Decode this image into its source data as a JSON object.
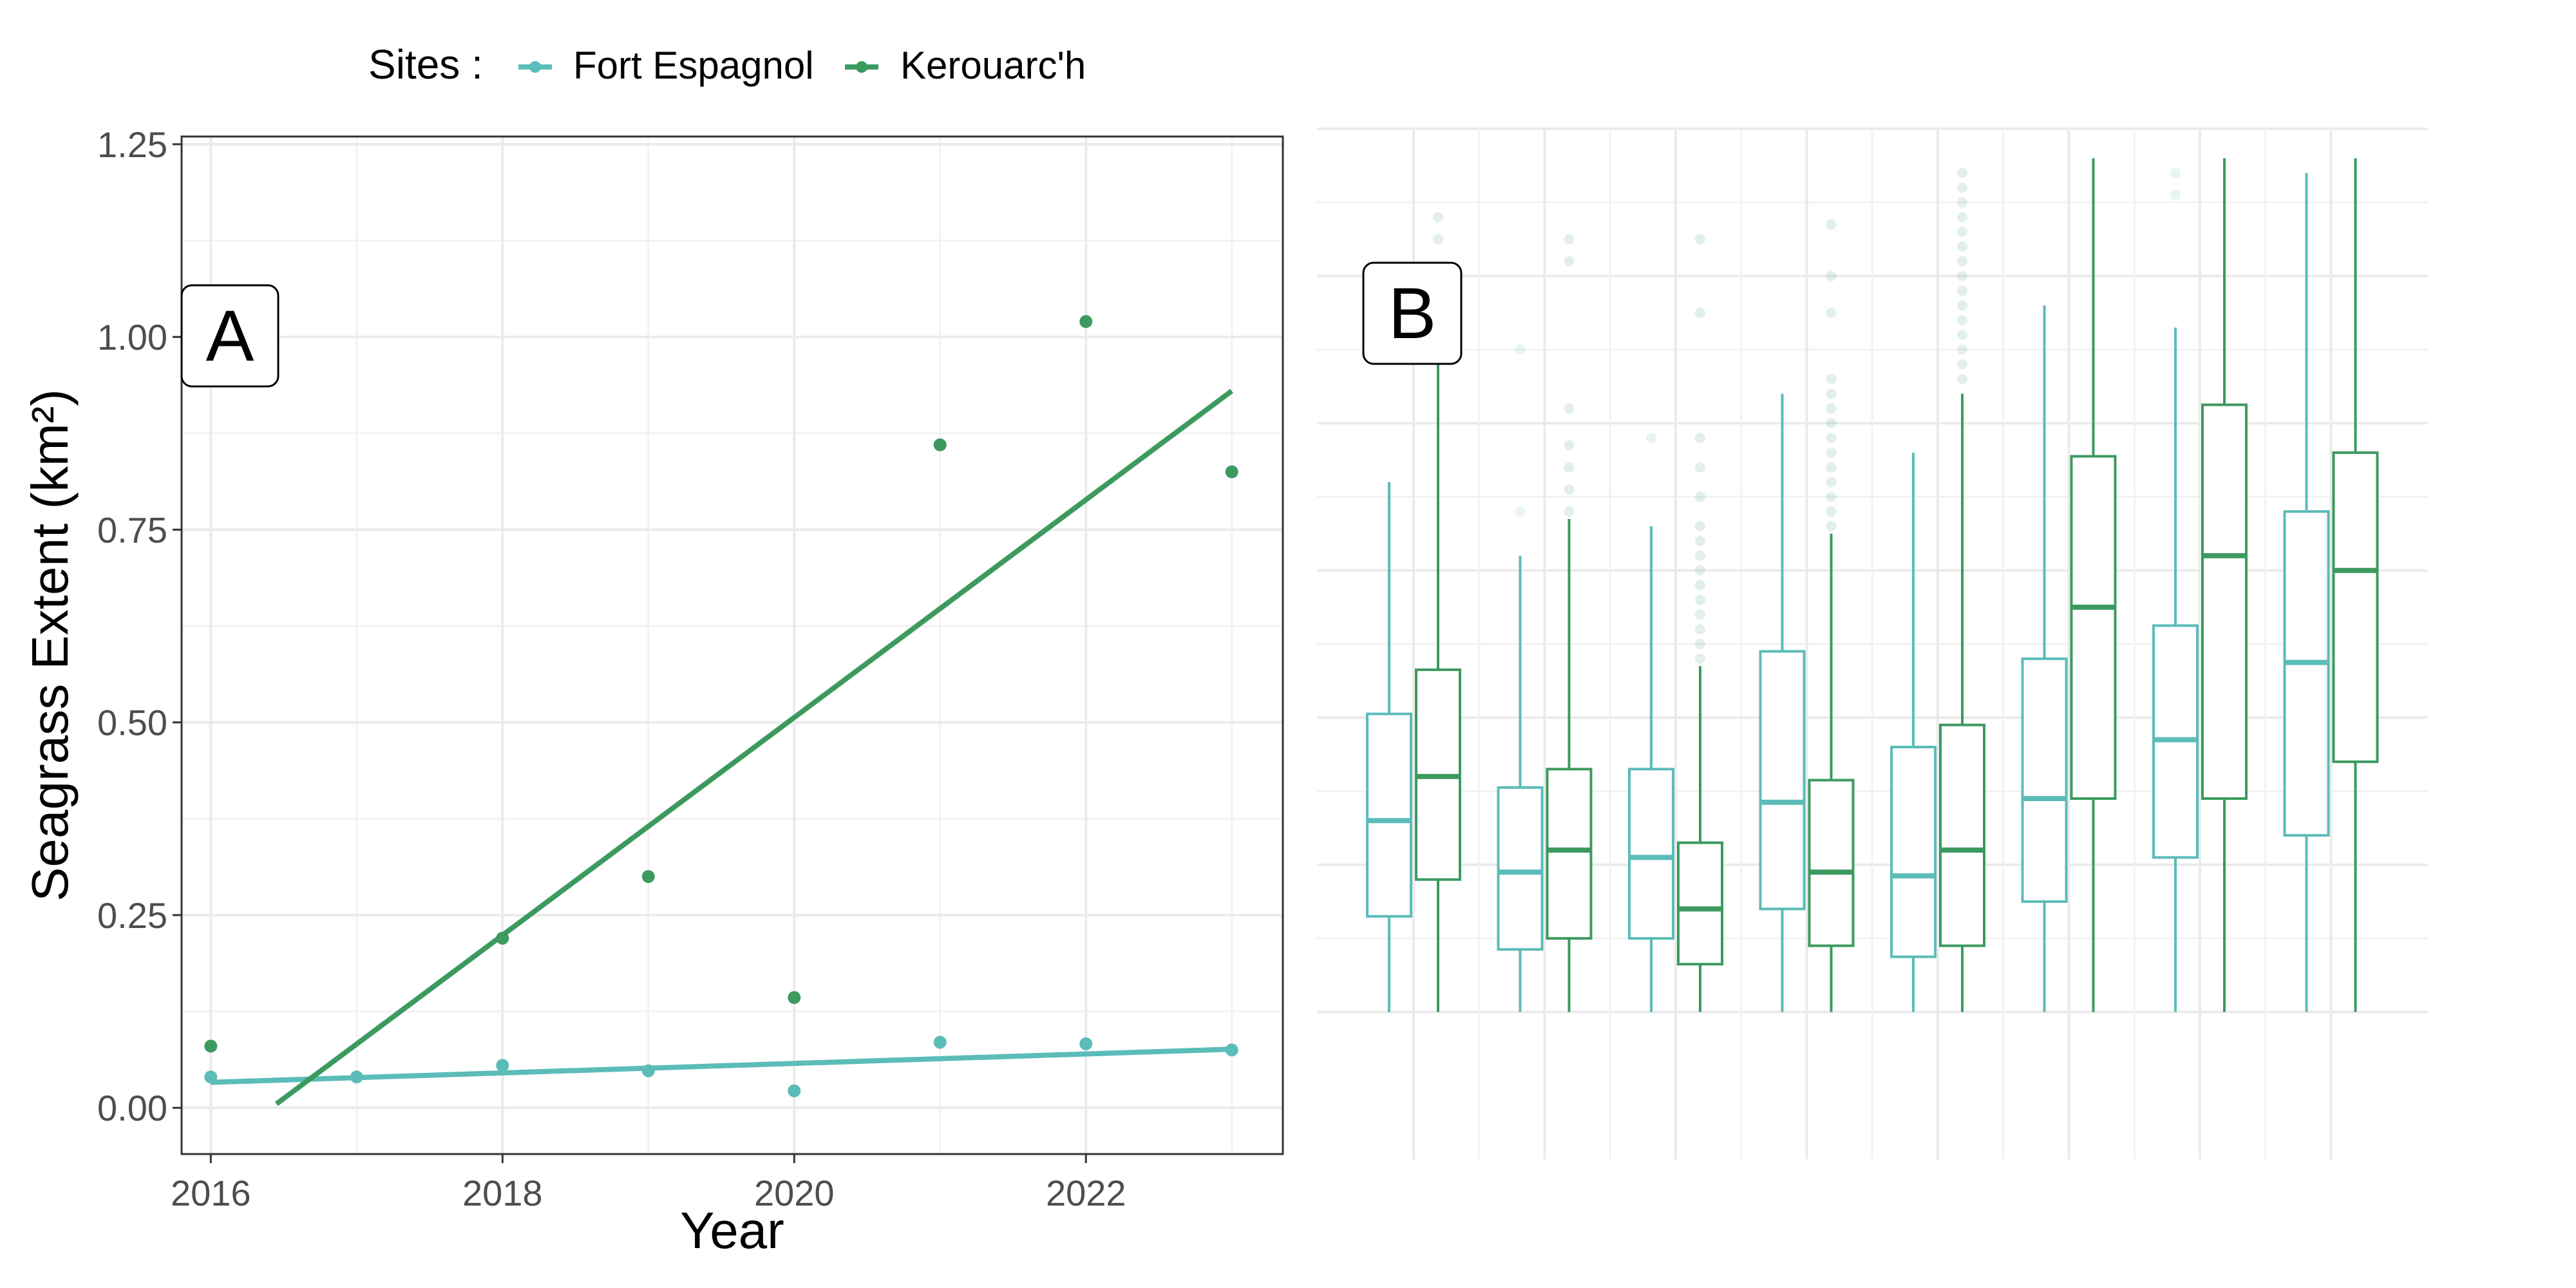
{
  "legend": {
    "title": "Sites :",
    "items": [
      {
        "label": "Fort Espagnol",
        "color": "#5bbcb8"
      },
      {
        "label": "Kerouarc'h",
        "color": "#3c9a5f"
      }
    ]
  },
  "chart_data": [
    {
      "panel": "A",
      "type": "scatter",
      "xlabel": "Year",
      "ylabel": "Seagrass Extent (km²)",
      "xlim": [
        2015.8,
        2023.35
      ],
      "ylim": [
        -0.06,
        1.26
      ],
      "xticks": [
        2016,
        2018,
        2020,
        2022
      ],
      "yticks": [
        "0.00",
        "0.25",
        "0.50",
        "0.75",
        "1.00",
        "1.25"
      ],
      "grid": true,
      "series": [
        {
          "name": "Fort Espagnol",
          "color": "#5bbcb8",
          "points": [
            [
              2016,
              0.04
            ],
            [
              2017,
              0.04
            ],
            [
              2018,
              0.055
            ],
            [
              2019,
              0.048
            ],
            [
              2020,
              0.022
            ],
            [
              2021,
              0.085
            ],
            [
              2022,
              0.083
            ],
            [
              2023,
              0.075
            ]
          ],
          "trend": [
            [
              2016,
              0.033
            ],
            [
              2023,
              0.076
            ]
          ]
        },
        {
          "name": "Kerouarc'h",
          "color": "#3c9a5f",
          "points": [
            [
              2016,
              0.08
            ],
            [
              2018,
              0.22
            ],
            [
              2019,
              0.3
            ],
            [
              2020,
              0.143
            ],
            [
              2021,
              0.86
            ],
            [
              2022,
              1.02
            ],
            [
              2023,
              0.825
            ]
          ],
          "trend": [
            [
              2016.45,
              0.005
            ],
            [
              2023,
              0.93
            ]
          ]
        }
      ]
    },
    {
      "panel": "B",
      "type": "box",
      "ylim": [
        -0.2,
        1.2
      ],
      "groups": 8,
      "series": [
        {
          "name": "Fort Espagnol",
          "color": "#5bbcb8",
          "boxes": [
            {
              "q1": 0.13,
              "median": 0.26,
              "q3": 0.405,
              "lo": 0,
              "hi": 0.72,
              "out": []
            },
            {
              "q1": 0.085,
              "median": 0.19,
              "q3": 0.305,
              "lo": 0,
              "hi": 0.62,
              "out": [
                0.68,
                0.9
              ]
            },
            {
              "q1": 0.1,
              "median": 0.21,
              "q3": 0.33,
              "lo": 0,
              "hi": 0.66,
              "out": [
                0.78
              ]
            },
            {
              "q1": 0.14,
              "median": 0.285,
              "q3": 0.49,
              "lo": 0,
              "hi": 0.84,
              "out": []
            },
            {
              "q1": 0.075,
              "median": 0.185,
              "q3": 0.36,
              "lo": 0,
              "hi": 0.76,
              "out": []
            },
            {
              "q1": 0.15,
              "median": 0.29,
              "q3": 0.48,
              "lo": 0,
              "hi": 0.96,
              "out": []
            },
            {
              "q1": 0.21,
              "median": 0.37,
              "q3": 0.525,
              "lo": 0,
              "hi": 0.93,
              "out": [
                1.11,
                1.14
              ]
            },
            {
              "q1": 0.24,
              "median": 0.475,
              "q3": 0.68,
              "lo": 0,
              "hi": 1.14,
              "out": []
            }
          ]
        },
        {
          "name": "Kerouarc'h",
          "color": "#3c9a5f",
          "boxes": [
            {
              "q1": 0.18,
              "median": 0.32,
              "q3": 0.465,
              "lo": 0,
              "hi": 0.89,
              "out": [
                0.9,
                0.91,
                1.05,
                1.08
              ]
            },
            {
              "q1": 0.1,
              "median": 0.22,
              "q3": 0.33,
              "lo": 0,
              "hi": 0.67,
              "out": [
                0.68,
                0.71,
                0.74,
                0.77,
                0.82,
                1.02,
                1.05
              ]
            },
            {
              "q1": 0.065,
              "median": 0.14,
              "q3": 0.23,
              "lo": 0,
              "hi": 0.47,
              "out": [
                0.48,
                0.5,
                0.52,
                0.54,
                0.56,
                0.58,
                0.6,
                0.62,
                0.64,
                0.66,
                0.7,
                0.74,
                0.78,
                0.95,
                1.05
              ]
            },
            {
              "q1": 0.09,
              "median": 0.19,
              "q3": 0.315,
              "lo": 0,
              "hi": 0.65,
              "out": [
                0.66,
                0.68,
                0.7,
                0.72,
                0.74,
                0.76,
                0.78,
                0.8,
                0.82,
                0.84,
                0.86,
                0.95,
                1.0,
                1.07
              ]
            },
            {
              "q1": 0.09,
              "median": 0.22,
              "q3": 0.39,
              "lo": 0,
              "hi": 0.84,
              "out": [
                0.86,
                0.88,
                0.9,
                0.92,
                0.94,
                0.96,
                0.98,
                1.0,
                1.02,
                1.04,
                1.06,
                1.08,
                1.1,
                1.12,
                1.14
              ]
            },
            {
              "q1": 0.29,
              "median": 0.55,
              "q3": 0.755,
              "lo": 0,
              "hi": 1.16,
              "out": []
            },
            {
              "q1": 0.29,
              "median": 0.62,
              "q3": 0.825,
              "lo": 0,
              "hi": 1.16,
              "out": []
            },
            {
              "q1": 0.34,
              "median": 0.6,
              "q3": 0.76,
              "lo": 0,
              "hi": 1.16,
              "out": []
            }
          ]
        }
      ]
    }
  ],
  "labels": {
    "panelA": "A",
    "panelB": "B"
  }
}
